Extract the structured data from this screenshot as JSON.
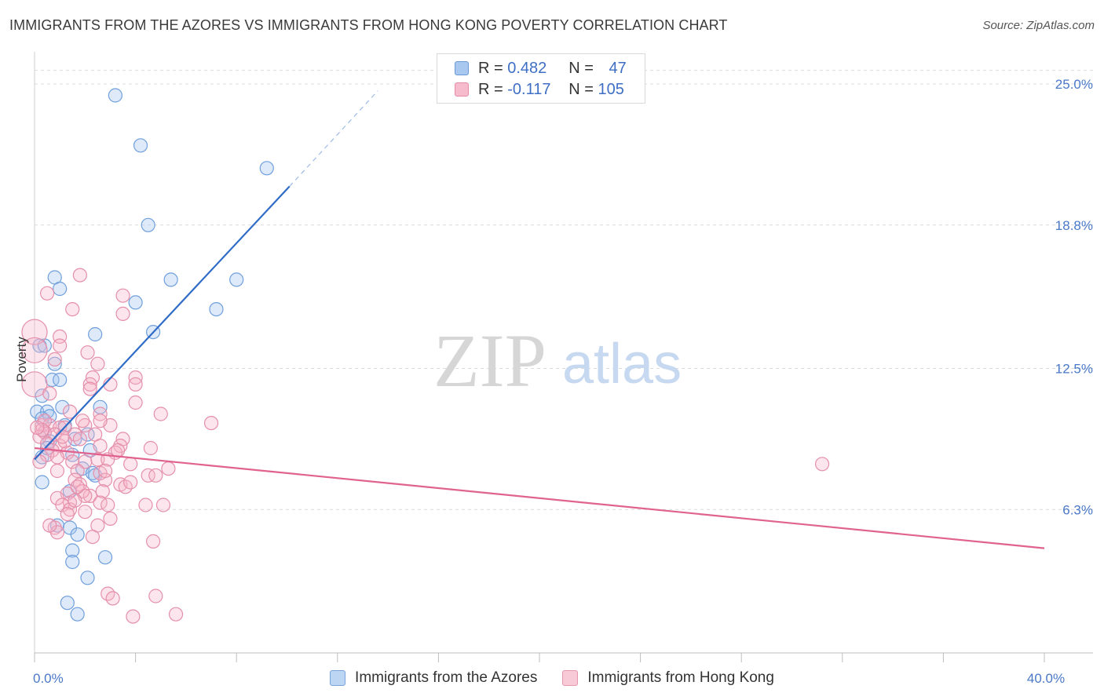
{
  "title": "IMMIGRANTS FROM THE AZORES VS IMMIGRANTS FROM HONG KONG POVERTY CORRELATION CHART",
  "source": "Source: ZipAtlas.com",
  "watermark": {
    "zip": "ZIP",
    "atlas": "atlas"
  },
  "legend": {
    "rows": [
      {
        "r_label": "R =",
        "r_value": "0.482",
        "n_label": "N =",
        "n_value": "47",
        "color": "#a9c8ef",
        "border": "#6a9ad6"
      },
      {
        "r_label": "R =",
        "r_value": "-0.117",
        "n_label": "N =",
        "n_value": "105",
        "color": "#f6bccd",
        "border": "#e58aa7"
      }
    ]
  },
  "bottom_legend": [
    {
      "label": "Immigrants from the Azores",
      "color": "#bcd5f3",
      "border": "#7aa3dc"
    },
    {
      "label": "Immigrants from Hong Kong",
      "color": "#f8c9d6",
      "border": "#e697ae"
    }
  ],
  "chart_data": {
    "type": "scatter",
    "title": "IMMIGRANTS FROM THE AZORES VS IMMIGRANTS FROM HONG KONG POVERTY CORRELATION CHART",
    "xlabel": "",
    "ylabel": "Poverty",
    "xlim": [
      0,
      40
    ],
    "ylim": [
      0,
      26
    ],
    "x_tick_labels": [
      {
        "value": 0,
        "label": "0.0%"
      },
      {
        "value": 40,
        "label": "40.0%"
      }
    ],
    "y_tick_labels": [
      {
        "value": 6.3,
        "label": "6.3%"
      },
      {
        "value": 12.5,
        "label": "12.5%"
      },
      {
        "value": 18.8,
        "label": "18.8%"
      },
      {
        "value": 25.0,
        "label": "25.0%"
      }
    ],
    "series": [
      {
        "name": "Immigrants from the Azores",
        "color": "#6f9fdc",
        "fill": "rgba(160,196,238,0.35)",
        "trend": {
          "x0": 0,
          "y0": 8.5,
          "x1": 10.1,
          "y1": 20.5,
          "dash_to_x": 13.6,
          "dash_to_y": 24.7,
          "color": "#2f6cc8"
        },
        "points": [
          [
            3.2,
            24.5
          ],
          [
            4.2,
            22.3
          ],
          [
            9.2,
            21.3
          ],
          [
            4.5,
            18.8
          ],
          [
            5.4,
            16.4
          ],
          [
            8.0,
            16.4
          ],
          [
            0.8,
            16.5
          ],
          [
            1.0,
            16.0
          ],
          [
            4.0,
            15.4
          ],
          [
            7.2,
            15.1
          ],
          [
            2.4,
            14.0
          ],
          [
            4.7,
            14.1
          ],
          [
            0.2,
            13.5
          ],
          [
            0.4,
            13.5
          ],
          [
            0.8,
            12.7
          ],
          [
            0.7,
            12.0
          ],
          [
            1.0,
            12.0
          ],
          [
            0.3,
            11.3
          ],
          [
            1.1,
            10.8
          ],
          [
            2.6,
            10.8
          ],
          [
            0.1,
            10.6
          ],
          [
            0.5,
            10.6
          ],
          [
            0.6,
            10.4
          ],
          [
            0.3,
            10.3
          ],
          [
            1.2,
            10.0
          ],
          [
            0.4,
            9.7
          ],
          [
            2.1,
            9.6
          ],
          [
            1.6,
            9.4
          ],
          [
            0.6,
            9.3
          ],
          [
            1.5,
            8.7
          ],
          [
            0.3,
            8.6
          ],
          [
            1.9,
            8.1
          ],
          [
            2.3,
            7.9
          ],
          [
            2.4,
            7.8
          ],
          [
            0.3,
            7.5
          ],
          [
            1.4,
            7.1
          ],
          [
            0.9,
            5.6
          ],
          [
            1.4,
            5.5
          ],
          [
            1.7,
            5.2
          ],
          [
            1.5,
            4.5
          ],
          [
            1.5,
            4.0
          ],
          [
            2.8,
            4.2
          ],
          [
            2.1,
            3.3
          ],
          [
            1.3,
            2.2
          ],
          [
            1.7,
            1.7
          ],
          [
            2.2,
            8.9
          ],
          [
            0.5,
            9.0
          ]
        ]
      },
      {
        "name": "Immigrants from Hong Kong",
        "color": "#e58fab",
        "fill": "rgba(246,180,200,0.35)",
        "trend": {
          "x0": 0,
          "y0": 9.0,
          "x1": 40,
          "y1": 4.6,
          "color": "#e0628f"
        },
        "points": [
          [
            0.0,
            14.1
          ],
          [
            0.0,
            13.3
          ],
          [
            0.0,
            11.8
          ],
          [
            0.5,
            15.8
          ],
          [
            1.5,
            15.1
          ],
          [
            1.8,
            16.6
          ],
          [
            3.5,
            15.7
          ],
          [
            3.5,
            14.9
          ],
          [
            1.0,
            13.9
          ],
          [
            1.0,
            13.5
          ],
          [
            2.1,
            13.2
          ],
          [
            0.8,
            12.9
          ],
          [
            2.5,
            12.7
          ],
          [
            2.3,
            12.1
          ],
          [
            4.0,
            12.1
          ],
          [
            2.2,
            11.8
          ],
          [
            3.0,
            11.8
          ],
          [
            4.0,
            11.8
          ],
          [
            0.6,
            11.4
          ],
          [
            4.0,
            11.0
          ],
          [
            1.4,
            10.6
          ],
          [
            2.6,
            10.5
          ],
          [
            5.0,
            10.5
          ],
          [
            7.0,
            10.1
          ],
          [
            0.3,
            10.0
          ],
          [
            0.6,
            10.0
          ],
          [
            1.0,
            9.9
          ],
          [
            1.2,
            9.9
          ],
          [
            2.0,
            10.0
          ],
          [
            3.0,
            10.0
          ],
          [
            0.4,
            9.7
          ],
          [
            0.8,
            9.6
          ],
          [
            1.6,
            9.6
          ],
          [
            2.4,
            9.6
          ],
          [
            0.2,
            9.5
          ],
          [
            1.8,
            9.4
          ],
          [
            3.5,
            9.4
          ],
          [
            0.5,
            9.2
          ],
          [
            1.0,
            9.1
          ],
          [
            2.6,
            9.1
          ],
          [
            3.4,
            9.1
          ],
          [
            4.6,
            9.0
          ],
          [
            0.7,
            8.9
          ],
          [
            1.3,
            8.8
          ],
          [
            3.2,
            8.8
          ],
          [
            0.5,
            8.7
          ],
          [
            0.9,
            8.6
          ],
          [
            2.5,
            8.5
          ],
          [
            2.9,
            8.5
          ],
          [
            0.2,
            8.4
          ],
          [
            1.5,
            8.4
          ],
          [
            2.0,
            8.4
          ],
          [
            3.8,
            8.3
          ],
          [
            5.3,
            8.1
          ],
          [
            0.9,
            8.0
          ],
          [
            1.7,
            8.0
          ],
          [
            2.6,
            7.9
          ],
          [
            4.5,
            7.8
          ],
          [
            4.8,
            7.8
          ],
          [
            1.6,
            7.6
          ],
          [
            2.8,
            7.6
          ],
          [
            1.8,
            7.4
          ],
          [
            3.4,
            7.4
          ],
          [
            3.6,
            7.3
          ],
          [
            2.7,
            7.1
          ],
          [
            1.3,
            7.0
          ],
          [
            2.2,
            6.9
          ],
          [
            0.9,
            6.8
          ],
          [
            2.6,
            6.6
          ],
          [
            1.4,
            6.6
          ],
          [
            1.1,
            6.5
          ],
          [
            2.9,
            6.5
          ],
          [
            4.4,
            6.5
          ],
          [
            5.1,
            6.5
          ],
          [
            1.4,
            6.3
          ],
          [
            2.0,
            6.2
          ],
          [
            1.3,
            6.1
          ],
          [
            3.0,
            5.9
          ],
          [
            2.5,
            5.6
          ],
          [
            0.8,
            5.5
          ],
          [
            0.9,
            5.3
          ],
          [
            2.3,
            5.1
          ],
          [
            4.7,
            4.9
          ],
          [
            2.9,
            2.6
          ],
          [
            3.1,
            2.4
          ],
          [
            4.8,
            2.5
          ],
          [
            3.9,
            1.6
          ],
          [
            5.6,
            1.7
          ],
          [
            1.9,
            7.1
          ],
          [
            2.0,
            6.9
          ],
          [
            1.6,
            6.7
          ],
          [
            0.6,
            5.6
          ],
          [
            1.2,
            9.3
          ],
          [
            2.8,
            8.0
          ],
          [
            3.3,
            8.9
          ],
          [
            0.4,
            10.2
          ],
          [
            1.9,
            10.2
          ],
          [
            0.3,
            9.8
          ],
          [
            0.1,
            9.9
          ],
          [
            31.2,
            8.3
          ],
          [
            2.6,
            10.2
          ],
          [
            1.1,
            9.5
          ],
          [
            3.8,
            7.5
          ],
          [
            1.7,
            7.3
          ],
          [
            2.2,
            11.6
          ]
        ]
      }
    ]
  }
}
